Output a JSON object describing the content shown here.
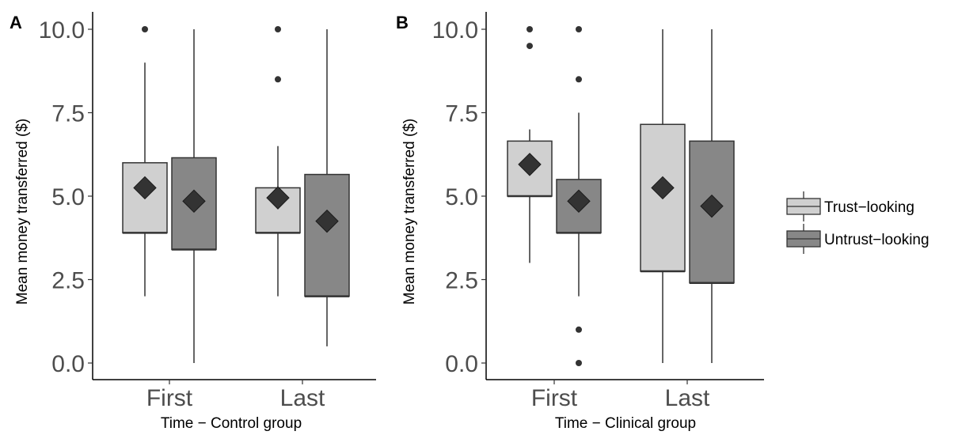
{
  "chart_data": [
    {
      "type": "box",
      "panel_label": "A",
      "xlabel": "Time − Control group",
      "ylabel": "Mean money transferred ($)",
      "categories": [
        "First",
        "Last"
      ],
      "ylim": [
        0,
        10
      ],
      "yticks": [
        "0.0",
        "2.5",
        "5.0",
        "7.5",
        "10.0"
      ],
      "grid": false,
      "series": [
        {
          "name": "Trust−looking",
          "boxes": [
            {
              "category": "First",
              "min": 2.0,
              "q1": 3.9,
              "median": 3.9,
              "q3": 6.0,
              "max": 9.0,
              "mean": 5.25,
              "outliers": [
                10.0
              ]
            },
            {
              "category": "Last",
              "min": 2.0,
              "q1": 3.9,
              "median": 3.9,
              "q3": 5.25,
              "max": 6.5,
              "mean": 4.95,
              "outliers": [
                8.5,
                10.0
              ]
            }
          ]
        },
        {
          "name": "Untrust−looking",
          "boxes": [
            {
              "category": "First",
              "min": 0.0,
              "q1": 3.4,
              "median": 3.4,
              "q3": 6.15,
              "max": 10.0,
              "mean": 4.85,
              "outliers": []
            },
            {
              "category": "Last",
              "min": 0.5,
              "q1": 2.0,
              "median": 2.0,
              "q3": 5.65,
              "max": 10.0,
              "mean": 4.25,
              "outliers": []
            }
          ]
        }
      ]
    },
    {
      "type": "box",
      "panel_label": "B",
      "xlabel": "Time − Clinical group",
      "ylabel": "Mean money transferred ($)",
      "categories": [
        "First",
        "Last"
      ],
      "ylim": [
        0,
        10
      ],
      "yticks": [
        "0.0",
        "2.5",
        "5.0",
        "7.5",
        "10.0"
      ],
      "grid": false,
      "series": [
        {
          "name": "Trust−looking",
          "boxes": [
            {
              "category": "First",
              "min": 3.0,
              "q1": 5.0,
              "median": 5.0,
              "q3": 6.65,
              "max": 7.0,
              "mean": 5.95,
              "outliers": [
                9.5,
                10.0
              ]
            },
            {
              "category": "Last",
              "min": 0.0,
              "q1": 2.75,
              "median": 2.75,
              "q3": 7.15,
              "max": 10.0,
              "mean": 5.25,
              "outliers": []
            }
          ]
        },
        {
          "name": "Untrust−looking",
          "boxes": [
            {
              "category": "First",
              "min": 2.0,
              "q1": 3.9,
              "median": 3.9,
              "q3": 5.5,
              "max": 7.5,
              "mean": 4.85,
              "outliers": [
                0.0,
                1.0,
                8.5,
                10.0
              ]
            },
            {
              "category": "Last",
              "min": 0.0,
              "q1": 2.4,
              "median": 2.4,
              "q3": 6.65,
              "max": 10.0,
              "mean": 4.7,
              "outliers": []
            }
          ]
        }
      ]
    }
  ],
  "legend": {
    "placement": "right",
    "items": [
      {
        "label": "Trust−looking",
        "color": "#d0d0d0"
      },
      {
        "label": "Untrust−looking",
        "color": "#878787"
      }
    ]
  },
  "colors": {
    "trust_fill": "#d0d0d0",
    "untrust_fill": "#878787",
    "stroke": "#333333",
    "mean_marker": "#333333"
  }
}
